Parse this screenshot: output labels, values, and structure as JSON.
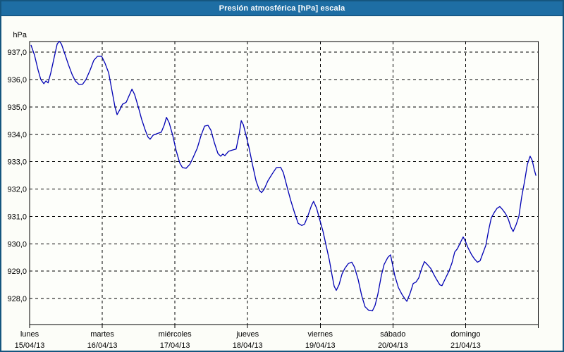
{
  "window": {
    "title": "Presión atmosférica [hPa] escala"
  },
  "colors": {
    "titlebar_bg": "#1e6ea4",
    "titlebar_text": "#ffffff",
    "window_border": "#15567f",
    "window_bg": "#fcfdf8",
    "plot_bg": "#fdfefa",
    "axis": "#000000",
    "grid": "#000000",
    "text": "#000000",
    "line": "#0000b4"
  },
  "y_axis": {
    "unit": "hPa",
    "ticks": [
      {
        "label": "937,0",
        "value": 937
      },
      {
        "label": "936,0",
        "value": 936
      },
      {
        "label": "935,0",
        "value": 935
      },
      {
        "label": "934,0",
        "value": 934
      },
      {
        "label": "933,0",
        "value": 933
      },
      {
        "label": "932,0",
        "value": 932
      },
      {
        "label": "931,0",
        "value": 931
      },
      {
        "label": "930,0",
        "value": 930
      },
      {
        "label": "929,0",
        "value": 929
      },
      {
        "label": "928,0",
        "value": 928
      }
    ]
  },
  "x_axis": {
    "days": [
      {
        "name": "lunes",
        "date": "15/04/13"
      },
      {
        "name": "martes",
        "date": "16/04/13"
      },
      {
        "name": "miércoles",
        "date": "17/04/13"
      },
      {
        "name": "jueves",
        "date": "18/04/13"
      },
      {
        "name": "viernes",
        "date": "19/04/13"
      },
      {
        "name": "sábado",
        "date": "20/04/13"
      },
      {
        "name": "domingo",
        "date": "21/04/13"
      }
    ]
  },
  "chart_data": {
    "type": "line",
    "title": "Presión atmosférica [hPa] escala",
    "ylabel": "hPa",
    "xlabel": "",
    "ylim": [
      927.05,
      937.39
    ],
    "xlim": [
      0,
      168
    ],
    "x_unit": "hours since 15/04/13 00:00",
    "grid": true,
    "legend": "none",
    "series": [
      {
        "name": "Presión atmosférica [hPa]",
        "color": "#0000b4",
        "points": [
          [
            0.5,
            937.25
          ],
          [
            1.6,
            936.9
          ],
          [
            2.8,
            936.35
          ],
          [
            3.7,
            936.0
          ],
          [
            4.7,
            935.85
          ],
          [
            5.4,
            935.95
          ],
          [
            6.1,
            935.88
          ],
          [
            7.0,
            936.25
          ],
          [
            8.2,
            936.85
          ],
          [
            9.1,
            937.3
          ],
          [
            9.8,
            937.4
          ],
          [
            10.5,
            937.3
          ],
          [
            11.6,
            936.95
          ],
          [
            12.8,
            936.55
          ],
          [
            14.0,
            936.2
          ],
          [
            15.1,
            935.95
          ],
          [
            16.3,
            935.82
          ],
          [
            17.5,
            935.83
          ],
          [
            18.6,
            936.0
          ],
          [
            20.0,
            936.35
          ],
          [
            21.2,
            936.7
          ],
          [
            22.4,
            936.85
          ],
          [
            23.8,
            936.85
          ],
          [
            24.9,
            936.6
          ],
          [
            26.1,
            936.25
          ],
          [
            27.2,
            935.6
          ],
          [
            28.2,
            935.0
          ],
          [
            28.9,
            934.72
          ],
          [
            29.8,
            934.9
          ],
          [
            30.7,
            935.1
          ],
          [
            31.9,
            935.17
          ],
          [
            32.8,
            935.4
          ],
          [
            33.8,
            935.65
          ],
          [
            34.7,
            935.45
          ],
          [
            35.9,
            935.0
          ],
          [
            37.0,
            934.55
          ],
          [
            38.2,
            934.15
          ],
          [
            39.1,
            933.9
          ],
          [
            39.8,
            933.82
          ],
          [
            40.8,
            933.97
          ],
          [
            42.2,
            934.03
          ],
          [
            43.5,
            934.08
          ],
          [
            44.5,
            934.35
          ],
          [
            45.2,
            934.62
          ],
          [
            46.1,
            934.42
          ],
          [
            47.3,
            933.95
          ],
          [
            48.4,
            933.4
          ],
          [
            49.6,
            932.95
          ],
          [
            50.5,
            932.78
          ],
          [
            51.7,
            932.76
          ],
          [
            52.9,
            932.9
          ],
          [
            54.0,
            933.15
          ],
          [
            55.4,
            933.5
          ],
          [
            56.6,
            933.95
          ],
          [
            57.8,
            934.3
          ],
          [
            58.9,
            934.33
          ],
          [
            59.9,
            934.15
          ],
          [
            61.0,
            933.7
          ],
          [
            62.2,
            933.3
          ],
          [
            63.1,
            933.2
          ],
          [
            63.8,
            933.28
          ],
          [
            64.5,
            933.22
          ],
          [
            65.7,
            933.38
          ],
          [
            67.1,
            933.43
          ],
          [
            68.2,
            933.46
          ],
          [
            69.2,
            934.0
          ],
          [
            69.9,
            934.5
          ],
          [
            70.6,
            934.35
          ],
          [
            71.5,
            933.95
          ],
          [
            72.4,
            933.55
          ],
          [
            73.6,
            932.9
          ],
          [
            74.8,
            932.3
          ],
          [
            75.9,
            931.95
          ],
          [
            76.6,
            931.87
          ],
          [
            77.5,
            932.0
          ],
          [
            78.7,
            932.3
          ],
          [
            80.1,
            932.55
          ],
          [
            81.5,
            932.78
          ],
          [
            82.9,
            932.8
          ],
          [
            83.8,
            932.6
          ],
          [
            85.0,
            932.1
          ],
          [
            86.2,
            931.6
          ],
          [
            87.6,
            931.1
          ],
          [
            88.7,
            930.75
          ],
          [
            89.9,
            930.67
          ],
          [
            90.8,
            930.72
          ],
          [
            92.0,
            931.05
          ],
          [
            93.1,
            931.4
          ],
          [
            93.8,
            931.55
          ],
          [
            94.8,
            931.3
          ],
          [
            95.9,
            930.85
          ],
          [
            96.9,
            930.45
          ],
          [
            98.0,
            929.9
          ],
          [
            99.0,
            929.4
          ],
          [
            99.9,
            928.85
          ],
          [
            100.6,
            928.45
          ],
          [
            101.3,
            928.3
          ],
          [
            102.2,
            928.5
          ],
          [
            103.2,
            928.9
          ],
          [
            104.1,
            929.1
          ],
          [
            105.3,
            929.28
          ],
          [
            106.4,
            929.33
          ],
          [
            107.3,
            929.15
          ],
          [
            108.5,
            928.7
          ],
          [
            109.7,
            928.1
          ],
          [
            110.8,
            927.7
          ],
          [
            112.0,
            927.57
          ],
          [
            113.2,
            927.55
          ],
          [
            114.1,
            927.75
          ],
          [
            115.0,
            928.15
          ],
          [
            116.2,
            928.85
          ],
          [
            117.1,
            929.25
          ],
          [
            118.3,
            929.5
          ],
          [
            119.2,
            929.6
          ],
          [
            120.6,
            928.85
          ],
          [
            121.8,
            928.4
          ],
          [
            123.0,
            928.15
          ],
          [
            123.9,
            928.0
          ],
          [
            124.6,
            927.9
          ],
          [
            125.7,
            928.2
          ],
          [
            126.7,
            928.55
          ],
          [
            127.6,
            928.6
          ],
          [
            128.5,
            928.75
          ],
          [
            129.5,
            929.1
          ],
          [
            130.4,
            929.35
          ],
          [
            131.3,
            929.25
          ],
          [
            132.5,
            929.1
          ],
          [
            133.4,
            928.9
          ],
          [
            134.4,
            928.7
          ],
          [
            135.5,
            928.5
          ],
          [
            136.2,
            928.47
          ],
          [
            137.4,
            928.75
          ],
          [
            138.5,
            929.0
          ],
          [
            139.5,
            929.3
          ],
          [
            140.4,
            929.7
          ],
          [
            141.3,
            929.82
          ],
          [
            142.3,
            930.05
          ],
          [
            143.2,
            930.25
          ],
          [
            143.9,
            930.1
          ],
          [
            144.8,
            929.85
          ],
          [
            146.0,
            929.6
          ],
          [
            146.9,
            929.45
          ],
          [
            147.9,
            929.33
          ],
          [
            148.8,
            929.38
          ],
          [
            149.7,
            929.65
          ],
          [
            150.7,
            929.95
          ],
          [
            151.6,
            930.5
          ],
          [
            152.5,
            930.95
          ],
          [
            153.5,
            931.15
          ],
          [
            154.4,
            931.3
          ],
          [
            155.3,
            931.36
          ],
          [
            156.2,
            931.25
          ],
          [
            157.2,
            931.1
          ],
          [
            158.1,
            930.9
          ],
          [
            159.0,
            930.6
          ],
          [
            159.7,
            930.45
          ],
          [
            160.7,
            930.7
          ],
          [
            161.6,
            931.0
          ],
          [
            162.5,
            931.7
          ],
          [
            163.5,
            932.3
          ],
          [
            164.4,
            932.9
          ],
          [
            165.3,
            933.2
          ],
          [
            166.0,
            933.05
          ],
          [
            166.7,
            932.7
          ],
          [
            167.2,
            932.5
          ]
        ]
      }
    ]
  }
}
